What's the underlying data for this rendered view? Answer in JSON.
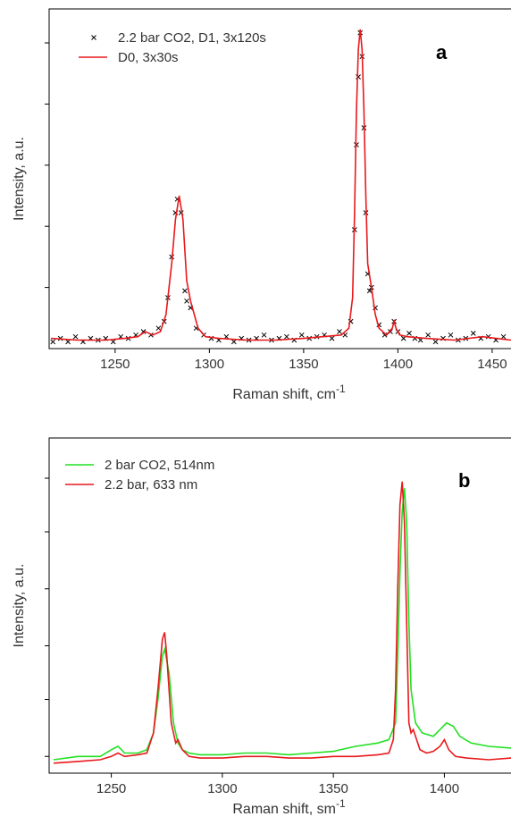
{
  "chart_data": [
    {
      "type": "line",
      "annotation": "a",
      "xlabel": "Raman shift, cm",
      "xlabel_superscript": "-1",
      "ylabel": "Intensity, a.u.",
      "xlim": [
        1215,
        1460
      ],
      "ylim": [
        0,
        100
      ],
      "xticks": [
        1250,
        1300,
        1350,
        1400,
        1450
      ],
      "yticks": [
        18,
        36,
        54,
        72,
        90
      ],
      "series": [
        {
          "name": "2.2 bar CO2, D1, 3x120s",
          "color": "#000000",
          "mode": "markers",
          "x": [
            1217,
            1221,
            1225,
            1229,
            1233,
            1237,
            1241,
            1245,
            1249,
            1253,
            1257,
            1261,
            1265,
            1269,
            1273,
            1276,
            1278,
            1280,
            1282,
            1283,
            1285,
            1287,
            1288,
            1290,
            1293,
            1297,
            1301,
            1305,
            1309,
            1313,
            1317,
            1321,
            1325,
            1329,
            1333,
            1337,
            1341,
            1345,
            1349,
            1353,
            1357,
            1361,
            1365,
            1369,
            1372,
            1375,
            1377,
            1378,
            1379,
            1380,
            1381,
            1382,
            1383,
            1384,
            1385,
            1386,
            1388,
            1390,
            1393,
            1396,
            1398,
            1400,
            1403,
            1406,
            1409,
            1412,
            1416,
            1420,
            1424,
            1428,
            1432,
            1436,
            1440,
            1444,
            1448,
            1452,
            1456
          ],
          "values": [
            2,
            3,
            2,
            3.5,
            2,
            3,
            2.5,
            3,
            2,
            3.5,
            3,
            4,
            5,
            4,
            6,
            8,
            15,
            27,
            40,
            44,
            40,
            17,
            14,
            12,
            6,
            4,
            3,
            2.5,
            3.5,
            2,
            3,
            2.5,
            3,
            4,
            2.5,
            3,
            3.5,
            2.5,
            4,
            3,
            3.5,
            4,
            3,
            5,
            4,
            8,
            35,
            60,
            80,
            93,
            86,
            65,
            40,
            22,
            17,
            18,
            12,
            7,
            4,
            5,
            8,
            5,
            3,
            4.5,
            3,
            2.5,
            4,
            2,
            3,
            4,
            2.5,
            3,
            4.5,
            3,
            3.5,
            2.5,
            3.5
          ]
        },
        {
          "name": "D0, 3x30s",
          "color": "#e8191c",
          "mode": "line",
          "x": [
            1216,
            1230,
            1245,
            1255,
            1262,
            1266,
            1270,
            1274,
            1277,
            1280,
            1282,
            1284,
            1286,
            1288,
            1290,
            1292,
            1294,
            1298,
            1305,
            1320,
            1335,
            1350,
            1360,
            1370,
            1374,
            1376,
            1377,
            1378,
            1379,
            1380,
            1381,
            1382,
            1383,
            1384,
            1386,
            1388,
            1390,
            1394,
            1397,
            1398,
            1399,
            1401,
            1405,
            1415,
            1430,
            1445,
            1452,
            1460
          ],
          "values": [
            3,
            2.5,
            2.5,
            3,
            3.5,
            5,
            4,
            5,
            10,
            25,
            38,
            45,
            38,
            20,
            14,
            10,
            6,
            3.5,
            3,
            2.5,
            2.5,
            3,
            3.5,
            4,
            6,
            15,
            40,
            70,
            88,
            94,
            88,
            70,
            45,
            25,
            18,
            10,
            6,
            4,
            6,
            8,
            6,
            4,
            3.5,
            3,
            2.5,
            3.5,
            3,
            2.5
          ]
        }
      ]
    },
    {
      "type": "line",
      "annotation": "b",
      "xlabel": "Raman shift, sm",
      "xlabel_superscript": "-1",
      "ylabel": "Intensity, a.u.",
      "xlim": [
        1222,
        1430
      ],
      "ylim": [
        0,
        100
      ],
      "xticks": [
        1250,
        1300,
        1350,
        1400
      ],
      "yticks": [
        5,
        22,
        38,
        55,
        72,
        88
      ],
      "series": [
        {
          "name": "2 bar CO2, 514nm",
          "color": "#22e022",
          "mode": "line",
          "x": [
            1224,
            1235,
            1245,
            1250,
            1253,
            1256,
            1262,
            1266,
            1269,
            1271,
            1273,
            1274,
            1276,
            1278,
            1280,
            1282,
            1285,
            1290,
            1300,
            1310,
            1320,
            1330,
            1340,
            1350,
            1360,
            1370,
            1375,
            1378,
            1379,
            1380,
            1381,
            1382,
            1383,
            1384,
            1385,
            1387,
            1390,
            1395,
            1398,
            1401,
            1404,
            1407,
            1412,
            1420,
            1430
          ],
          "values": [
            4,
            5,
            5,
            7,
            8,
            6,
            6,
            7,
            12,
            22,
            35,
            37,
            30,
            15,
            9,
            7,
            6,
            5.5,
            5.5,
            6,
            6,
            5.5,
            6,
            6.5,
            8,
            9,
            10,
            15,
            35,
            60,
            78,
            85,
            75,
            45,
            25,
            15,
            12,
            11,
            13,
            15,
            14,
            11,
            9,
            8,
            7.5
          ]
        },
        {
          "name": "2.2 bar, 633 nm",
          "color": "#e8191c",
          "mode": "line",
          "x": [
            1224,
            1235,
            1245,
            1250,
            1253,
            1256,
            1262,
            1266,
            1269,
            1271,
            1273,
            1274,
            1275,
            1277,
            1279,
            1280,
            1282,
            1285,
            1290,
            1300,
            1310,
            1320,
            1330,
            1340,
            1350,
            1360,
            1370,
            1375,
            1377,
            1378,
            1379,
            1380,
            1381,
            1382,
            1383,
            1384,
            1385,
            1386,
            1387,
            1389,
            1392,
            1395,
            1398,
            1400,
            1402,
            1405,
            1410,
            1420,
            1430
          ],
          "values": [
            3,
            3.5,
            4,
            5,
            6,
            5,
            5.5,
            6,
            12,
            25,
            40,
            42,
            35,
            15,
            9,
            10,
            7,
            5,
            4.5,
            4.5,
            5,
            5,
            4.5,
            4.5,
            5,
            5,
            5.5,
            6,
            10,
            25,
            55,
            80,
            87,
            75,
            45,
            15,
            12,
            13,
            11,
            7,
            6,
            6.5,
            8,
            10,
            7,
            5,
            4.5,
            4,
            4.5
          ]
        }
      ]
    }
  ]
}
